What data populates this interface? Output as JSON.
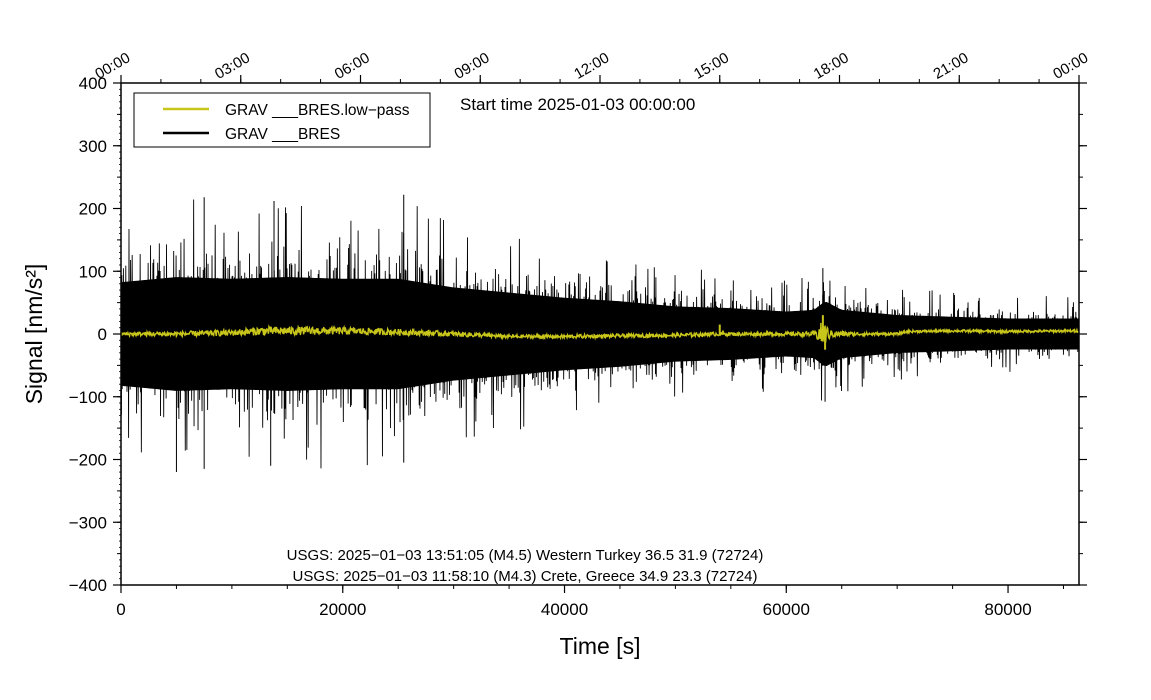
{
  "chart_data": {
    "type": "line",
    "title": "",
    "start_time_label": "Start time 2025-01-03 00:00:00",
    "xlabel": "Time [s]",
    "ylabel": "Signal [nm/s²]",
    "xlim": [
      0,
      86400
    ],
    "ylim": [
      -400,
      400
    ],
    "x_ticks": [
      0,
      20000,
      40000,
      60000,
      80000
    ],
    "x_tick_labels": [
      "0",
      "20000",
      "40000",
      "60000",
      "80000"
    ],
    "y_ticks": [
      -400,
      -300,
      -200,
      -100,
      0,
      100,
      200,
      300,
      400
    ],
    "y_tick_labels": [
      "−400",
      "−300",
      "−200",
      "−100",
      "0",
      "100",
      "200",
      "300",
      "400"
    ],
    "top_axis_ticks_seconds": [
      0,
      10800,
      21600,
      32400,
      43200,
      54000,
      64800,
      75600,
      86400
    ],
    "top_axis_labels": [
      "00:00",
      "03:00",
      "06:00",
      "09:00",
      "12:00",
      "15:00",
      "18:00",
      "21:00",
      "00:00"
    ],
    "legend_position": "top-left",
    "grid": false,
    "series": [
      {
        "name": "GRAV ___BRES.low−pass",
        "color": "#c9c61b",
        "envelope_description_points": {
          "x": [
            0,
            5000,
            10000,
            13000,
            20000,
            25000,
            30000,
            35000,
            40000,
            45000,
            50000,
            54000,
            55000,
            60000,
            62500,
            63300,
            64000,
            66000,
            70000,
            71000,
            75000,
            80000,
            86400
          ],
          "y_center": [
            0,
            0,
            2,
            5,
            5,
            3,
            0,
            -4,
            -4,
            -3,
            -2,
            0,
            0,
            0,
            0,
            0,
            0,
            0,
            0,
            4,
            5,
            4,
            5
          ],
          "amplitude": [
            3,
            4,
            5,
            7,
            6,
            5,
            4,
            3,
            3,
            3,
            3,
            3,
            3,
            3,
            4,
            22,
            6,
            3,
            2,
            2,
            2,
            2,
            2
          ],
          "spikes": [
            {
              "x": 54000,
              "y": 15
            },
            {
              "x": 63300,
              "y": 30
            },
            {
              "x": 63500,
              "y": -25
            }
          ]
        }
      },
      {
        "name": "GRAV ___BRES",
        "color": "#000000",
        "envelope_description_points": {
          "x": [
            0,
            5000,
            10000,
            15000,
            20000,
            25000,
            30000,
            35000,
            40000,
            45000,
            50000,
            55000,
            60000,
            62500,
            63500,
            65000,
            70000,
            75000,
            80000,
            86400
          ],
          "amplitude": [
            150,
            165,
            160,
            165,
            160,
            160,
            135,
            120,
            105,
            95,
            80,
            75,
            65,
            70,
            95,
            70,
            55,
            50,
            45,
            45
          ],
          "peaks": [
            {
              "x": 7500,
              "y": 218
            },
            {
              "x": 13800,
              "y": 212
            },
            {
              "x": 25500,
              "y": 222
            },
            {
              "x": 5000,
              "y": -220
            },
            {
              "x": 7500,
              "y": -215
            },
            {
              "x": 13500,
              "y": -210
            },
            {
              "x": 25500,
              "y": -205
            },
            {
              "x": 63300,
              "y": 105
            },
            {
              "x": 63500,
              "y": -108
            }
          ]
        }
      }
    ],
    "annotations": [
      "USGS: 2025−01−03 13:51:05 (M4.5) Western Turkey 36.5 31.9 (72724)",
      "USGS: 2025−01−03 11:58:10 (M4.3) Crete, Greece 34.9 23.3 (72724)"
    ]
  }
}
